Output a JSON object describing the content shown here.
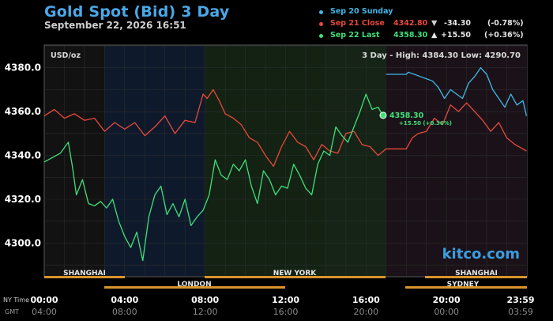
{
  "header": {
    "title": "Gold Spot (Bid) 3 Day",
    "timestamp": "September 22, 2026 16:51"
  },
  "legend": [
    {
      "label": "Sep 20 Sunday",
      "price": "",
      "arrow": "",
      "change": "",
      "pct": "",
      "color": "#3fb8e8"
    },
    {
      "label": "Sep 21 Close",
      "price": "4342.80",
      "arrow": "▼",
      "change": "-34.30",
      "pct": "(-0.78%)",
      "color": "#e8483c"
    },
    {
      "label": "Sep 22 Last",
      "price": "4358.30",
      "arrow": "▲",
      "change": "+15.50",
      "pct": "(+0.36%)",
      "color": "#3ee07a"
    }
  ],
  "panel": {
    "unit": "USD/oz",
    "range_text": "3 Day - High: 4384.30  Low: 4290.70",
    "watermark": "kitco.com"
  },
  "sessions_top": [
    "SHANGHAI",
    "NEW YORK",
    "SHANGHAI"
  ],
  "sessions_bottom": [
    "LONDON",
    "SYDNEY"
  ],
  "time_rows": {
    "ny_label": "NY Time",
    "gmt_label": "GMT",
    "ny": [
      "00:00",
      "04:00",
      "08:00",
      "12:00",
      "16:00",
      "20:00",
      "23:59"
    ],
    "gmt": [
      "04:00",
      "08:00",
      "12:00",
      "16:00",
      "20:00",
      "00:00",
      "03:59"
    ]
  },
  "chart_data": {
    "type": "line",
    "x_unit": "NY time (hours)",
    "xlim": [
      0,
      24
    ],
    "ylim": [
      4285,
      4390
    ],
    "y_ticks": [
      4300,
      4320,
      4340,
      4360,
      4380
    ],
    "y_tick_labels": [
      "4300.0",
      "4320.0",
      "4340.0",
      "4360.0",
      "4380.0"
    ],
    "grid": true,
    "last_point": {
      "x": 16.85,
      "y": 4358.3,
      "label": "4358.30",
      "sublabel": "+15.50 (+0.36%)"
    },
    "series": [
      {
        "name": "Sep 20 Sunday",
        "color": "#3fb8e8",
        "x": [
          17.0,
          18.0,
          18.1,
          18.4,
          18.7,
          19.0,
          19.3,
          19.6,
          19.9,
          20.2,
          20.5,
          20.8,
          21.1,
          21.4,
          21.7,
          22.0,
          22.3,
          22.6,
          22.9,
          23.2,
          23.5,
          23.8,
          23.98
        ],
        "y": [
          4377,
          4377,
          4378,
          4377,
          4376,
          4375,
          4374,
          4371,
          4366,
          4370,
          4368,
          4366,
          4373,
          4376,
          4380,
          4377,
          4370,
          4366,
          4362,
          4368,
          4363,
          4365,
          4358
        ]
      },
      {
        "name": "Sep 21 Close",
        "color": "#e8483c",
        "x": [
          0.0,
          0.5,
          1.0,
          1.5,
          2.0,
          2.5,
          3.0,
          3.5,
          4.0,
          4.5,
          5.0,
          5.5,
          6.0,
          6.5,
          7.0,
          7.5,
          7.9,
          8.1,
          8.4,
          8.7,
          9.0,
          9.4,
          9.8,
          10.2,
          10.6,
          11.0,
          11.4,
          11.8,
          12.2,
          12.6,
          13.0,
          13.4,
          13.8,
          14.2,
          14.6,
          15.0,
          15.4,
          15.8,
          16.2,
          16.6,
          17.0,
          17.5,
          18.0,
          18.3,
          18.6,
          19.0,
          19.4,
          19.8,
          20.2,
          20.6,
          21.0,
          21.4,
          21.8,
          22.2,
          22.6,
          23.0,
          23.4,
          23.98
        ],
        "y": [
          4358,
          4361,
          4357,
          4359,
          4356,
          4357,
          4351,
          4355,
          4352,
          4355,
          4349,
          4353,
          4358,
          4350,
          4356,
          4355,
          4368,
          4366,
          4370,
          4365,
          4359,
          4357,
          4354,
          4348,
          4346,
          4340,
          4335,
          4344,
          4351,
          4346,
          4344,
          4338,
          4345,
          4342,
          4341,
          4350,
          4351,
          4345,
          4344,
          4340,
          4343,
          4343,
          4343,
          4348,
          4350,
          4351,
          4357,
          4354,
          4363,
          4360,
          4364,
          4360,
          4356,
          4351,
          4355,
          4348,
          4345,
          4342
        ]
      },
      {
        "name": "Sep 22 Last",
        "color": "#3ee07a",
        "x": [
          0.0,
          0.4,
          0.8,
          1.2,
          1.4,
          1.6,
          1.9,
          2.2,
          2.5,
          2.8,
          3.1,
          3.4,
          3.7,
          4.0,
          4.3,
          4.6,
          4.9,
          5.2,
          5.5,
          5.8,
          6.1,
          6.4,
          6.7,
          7.0,
          7.3,
          7.6,
          7.9,
          8.2,
          8.5,
          8.8,
          9.1,
          9.4,
          9.7,
          10.0,
          10.3,
          10.6,
          10.9,
          11.2,
          11.5,
          11.8,
          12.1,
          12.4,
          12.7,
          13.0,
          13.3,
          13.6,
          13.9,
          14.2,
          14.5,
          14.8,
          15.1,
          15.4,
          15.7,
          16.0,
          16.3,
          16.6,
          16.85
        ],
        "y": [
          4337,
          4339,
          4341,
          4346,
          4335,
          4322,
          4329,
          4318,
          4317,
          4319,
          4316,
          4320,
          4310,
          4303,
          4298,
          4305,
          4292,
          4312,
          4322,
          4326,
          4313,
          4318,
          4312,
          4320,
          4308,
          4312,
          4315,
          4322,
          4338,
          4331,
          4329,
          4336,
          4333,
          4338,
          4326,
          4318,
          4333,
          4329,
          4322,
          4326,
          4325,
          4336,
          4331,
          4325,
          4322,
          4336,
          4342,
          4340,
          4353,
          4349,
          4346,
          4353,
          4360,
          4368,
          4361,
          4362,
          4358
        ]
      }
    ]
  }
}
